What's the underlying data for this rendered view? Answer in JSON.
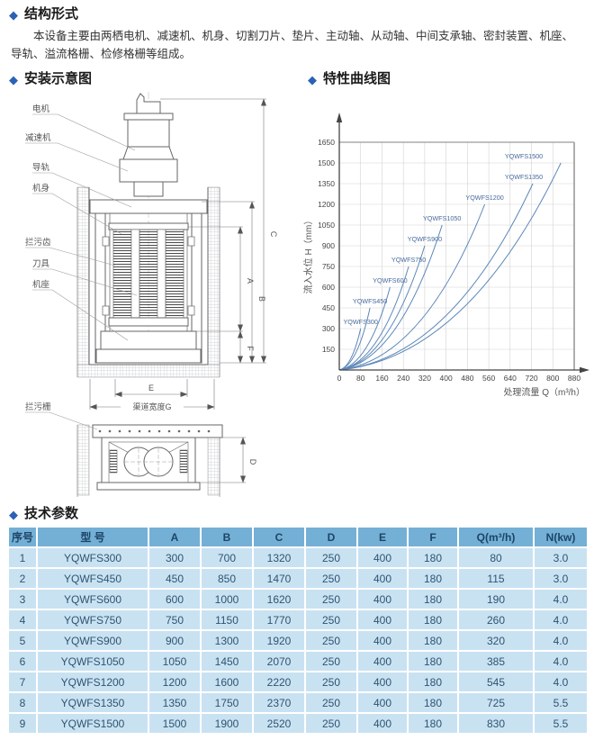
{
  "page": {
    "icons": {
      "diamond": "◆"
    },
    "sections": {
      "structure": "结构形式",
      "install": "安装示意图",
      "curve": "特性曲线图",
      "params": "技术参数"
    },
    "intro": "本设备主要由两栖电机、减速机、机身、切割刀片、垫片、主动轴、从动轴、中间支承轴、密封装置、机座、导轨、溢流格栅、检修格栅等组成。"
  },
  "diagram": {
    "labels": {
      "motor": "电机",
      "reducer": "减速机",
      "guide_rail": "导轨",
      "body": "机身",
      "trash_teeth": "拦污齿",
      "cutter": "刀具",
      "base": "机座",
      "trash_rack": "拦污栅"
    },
    "dims": {
      "a": "A",
      "b": "B",
      "c": "C",
      "d": "D",
      "e": "E",
      "f": "F",
      "channel_width": "渠道宽度G"
    }
  },
  "chart_data": {
    "type": "line",
    "title": "特性曲线图",
    "xlabel": "处理流量 Q（m³/h）",
    "ylabel": "流入水位 H（mm）",
    "xlim": [
      0,
      880
    ],
    "ylim": [
      0,
      1650
    ],
    "xticks": [
      0,
      80,
      160,
      240,
      320,
      400,
      480,
      560,
      640,
      720,
      800,
      880
    ],
    "yticks": [
      150,
      300,
      450,
      600,
      750,
      900,
      1050,
      1200,
      1350,
      1500,
      1650
    ],
    "grid": true,
    "legend_position": "labels-on-curves",
    "curve_shape": "concave-up curves starting at origin, each ending at its rated flow/level",
    "series": [
      {
        "name": "YQWFS300",
        "points": [
          [
            0,
            0
          ],
          [
            80,
            300
          ]
        ]
      },
      {
        "name": "YQWFS450",
        "points": [
          [
            0,
            0
          ],
          [
            115,
            450
          ]
        ]
      },
      {
        "name": "YQWFS600",
        "points": [
          [
            0,
            0
          ],
          [
            190,
            600
          ]
        ]
      },
      {
        "name": "YQWFS750",
        "points": [
          [
            0,
            0
          ],
          [
            260,
            750
          ]
        ]
      },
      {
        "name": "YQWFS900",
        "points": [
          [
            0,
            0
          ],
          [
            320,
            900
          ]
        ]
      },
      {
        "name": "YQWFS1050",
        "points": [
          [
            0,
            0
          ],
          [
            385,
            1050
          ]
        ]
      },
      {
        "name": "YQWFS1200",
        "points": [
          [
            0,
            0
          ],
          [
            545,
            1200
          ]
        ]
      },
      {
        "name": "YQWFS1350",
        "points": [
          [
            0,
            0
          ],
          [
            725,
            1350
          ]
        ]
      },
      {
        "name": "YQWFS1500",
        "points": [
          [
            0,
            0
          ],
          [
            830,
            1500
          ]
        ]
      }
    ]
  },
  "table": {
    "headers": [
      "序号",
      "型  号",
      "A",
      "B",
      "C",
      "D",
      "E",
      "F",
      "Q(m³/h)",
      "N(kw)"
    ],
    "rows": [
      [
        "1",
        "YQWFS300",
        "300",
        "700",
        "1320",
        "250",
        "400",
        "180",
        "80",
        "3.0"
      ],
      [
        "2",
        "YQWFS450",
        "450",
        "850",
        "1470",
        "250",
        "400",
        "180",
        "115",
        "3.0"
      ],
      [
        "3",
        "YQWFS600",
        "600",
        "1000",
        "1620",
        "250",
        "400",
        "180",
        "190",
        "4.0"
      ],
      [
        "4",
        "YQWFS750",
        "750",
        "1150",
        "1770",
        "250",
        "400",
        "180",
        "260",
        "4.0"
      ],
      [
        "5",
        "YQWFS900",
        "900",
        "1300",
        "1920",
        "250",
        "400",
        "180",
        "320",
        "4.0"
      ],
      [
        "6",
        "YQWFS1050",
        "1050",
        "1450",
        "2070",
        "250",
        "400",
        "180",
        "385",
        "4.0"
      ],
      [
        "7",
        "YQWFS1200",
        "1200",
        "1600",
        "2220",
        "250",
        "400",
        "180",
        "545",
        "4.0"
      ],
      [
        "8",
        "YQWFS1350",
        "1350",
        "1750",
        "2370",
        "250",
        "400",
        "180",
        "725",
        "5.5"
      ],
      [
        "9",
        "YQWFS1500",
        "1500",
        "1900",
        "2520",
        "250",
        "400",
        "180",
        "830",
        "5.5"
      ]
    ]
  },
  "colors": {
    "accent_diamond": "#2b62b5",
    "table_header_bg": "#74b0d6",
    "table_row_bg": "#c9e2f2",
    "table_text": "#2e5470",
    "curve_color": "#5b87b8"
  }
}
